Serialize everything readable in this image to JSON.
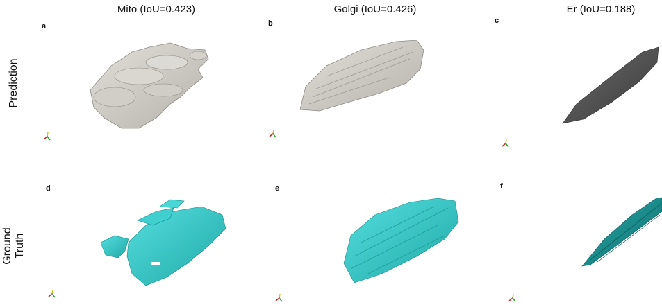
{
  "columns": [
    "Mito (IoU=0.423)",
    "Golgi (IoU=0.426)",
    "Er (IoU=0.188)"
  ],
  "rows": [
    [
      "Prediction"
    ],
    [
      "Ground",
      "Truth"
    ]
  ],
  "panels": [
    "a",
    "b",
    "c",
    "d",
    "e",
    "f"
  ]
}
